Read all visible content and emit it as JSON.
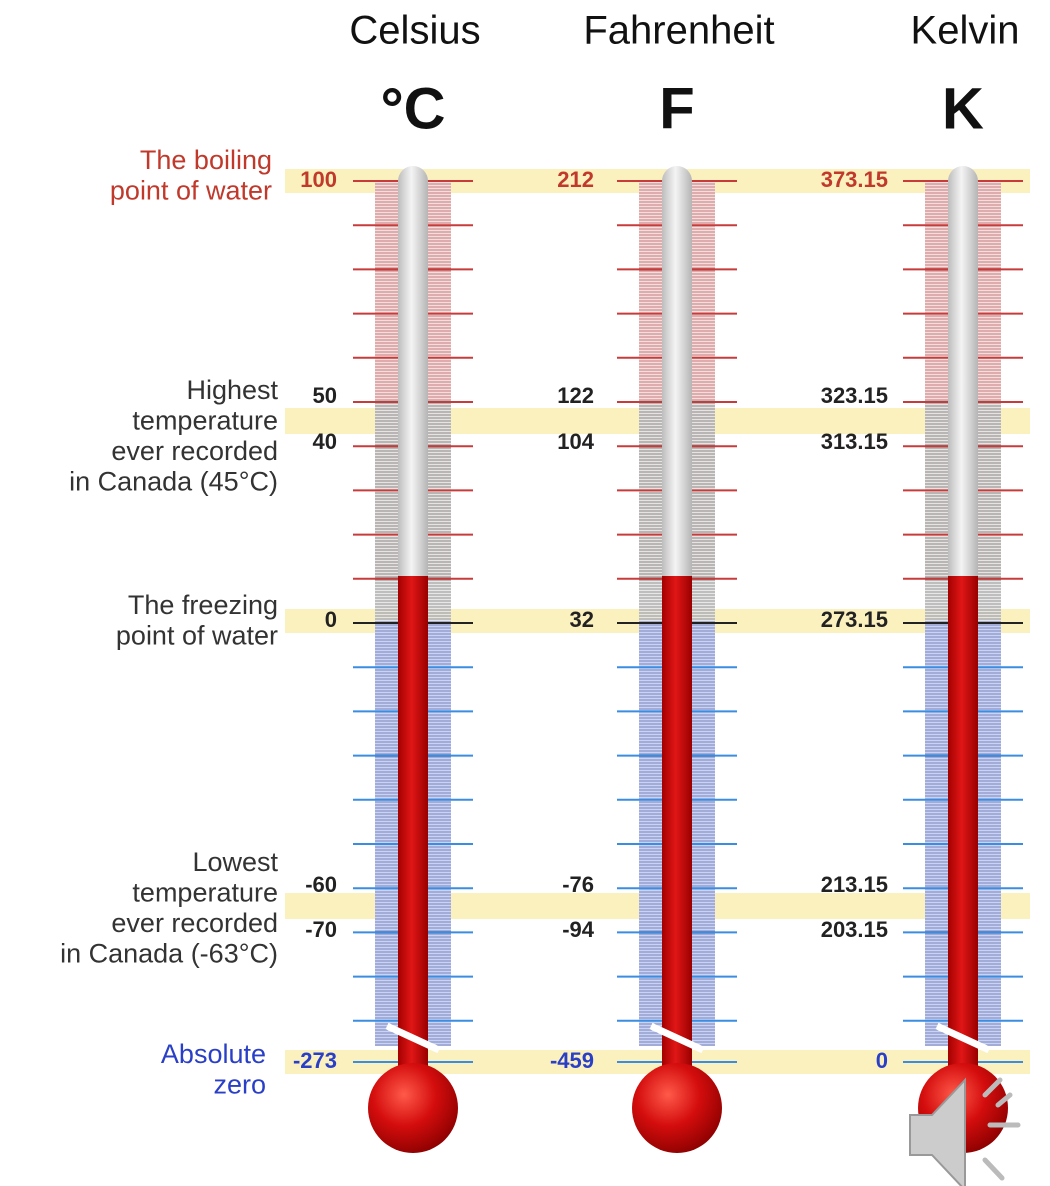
{
  "scales": [
    {
      "name": "Celsius",
      "symbol": "°C",
      "marks": [
        "100",
        "50",
        "40",
        "0",
        "-60",
        "-70",
        "-273"
      ]
    },
    {
      "name": "Fahrenheit",
      "symbol": "F",
      "marks": [
        "212",
        "122",
        "104",
        "32",
        "-76",
        "-94",
        "-459"
      ]
    },
    {
      "name": "Kelvin",
      "symbol": "K",
      "marks": [
        "373.15",
        "323.15",
        "313.15",
        "273.15",
        "213.15",
        "203.15",
        "0"
      ]
    }
  ],
  "annotations": [
    {
      "lines": [
        "The boiling",
        "point of water"
      ]
    },
    {
      "lines": [
        "Highest",
        "temperature",
        "ever recorded",
        "in Canada (45°C)"
      ]
    },
    {
      "lines": [
        "The freezing",
        "point of water"
      ]
    },
    {
      "lines": [
        "Lowest",
        "temperature",
        "ever recorded",
        "in Canada (-63°C)"
      ]
    },
    {
      "lines": [
        "Absolute",
        "zero"
      ]
    }
  ]
}
